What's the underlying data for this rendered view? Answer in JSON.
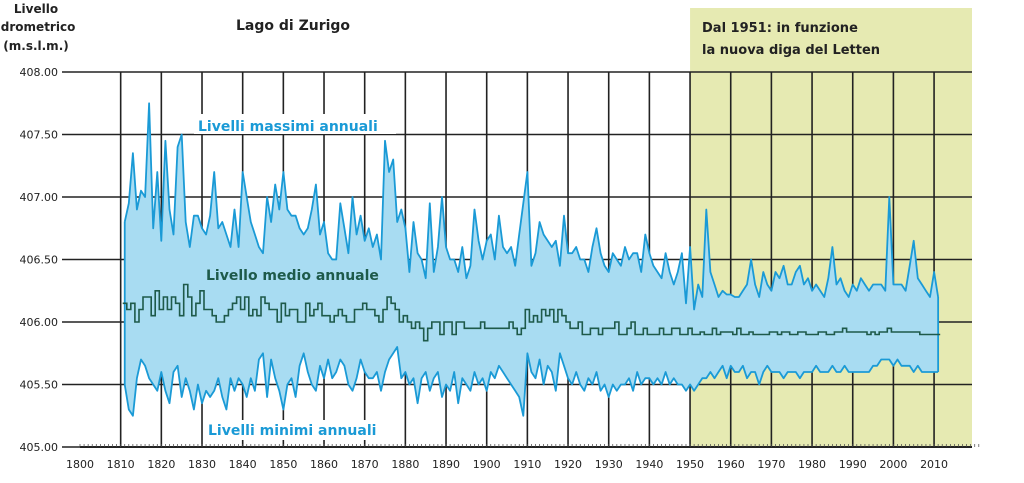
{
  "chart_data": {
    "type": "area",
    "title": "Lago di Zurigo",
    "ylabel": [
      "Livello",
      "idrometrico",
      "(m.s.l.m.)"
    ],
    "xlabel": "",
    "xlim": [
      1800,
      2018
    ],
    "ylim": [
      405.0,
      408.0
    ],
    "grid": true,
    "x_ticks": [
      "1800",
      "1810",
      "1820",
      "1830",
      "1840",
      "1850",
      "1860",
      "1870",
      "1880",
      "1890",
      "1900",
      "1910",
      "1920",
      "1930",
      "1940",
      "1950",
      "1960",
      "1970",
      "1980",
      "1990",
      "2000",
      "2010"
    ],
    "y_ticks": [
      "405.00",
      "405.50",
      "406.00",
      "406.50",
      "407.00",
      "407.50",
      "408.00"
    ],
    "annotation": {
      "lines": [
        "Dal 1951: in funzione",
        "la nuova diga del Letten"
      ],
      "shaded_from": 1950,
      "color": "#e6eab2"
    },
    "start_year": 1811,
    "series": [
      {
        "name": "Livelli massimi annuali",
        "color": "#1a9ad6",
        "values": [
          406.8,
          406.95,
          407.35,
          406.9,
          407.05,
          407.0,
          407.75,
          406.75,
          407.2,
          406.65,
          407.45,
          406.9,
          406.7,
          407.4,
          407.5,
          406.8,
          406.6,
          406.85,
          406.85,
          406.75,
          406.7,
          406.85,
          407.2,
          406.75,
          406.8,
          406.7,
          406.6,
          406.9,
          406.6,
          407.2,
          407.0,
          406.8,
          406.7,
          406.6,
          406.55,
          407.0,
          406.8,
          407.1,
          406.9,
          407.2,
          406.9,
          406.85,
          406.85,
          406.75,
          406.7,
          406.75,
          406.9,
          407.1,
          406.7,
          406.8,
          406.55,
          406.5,
          406.5,
          406.95,
          406.75,
          406.55,
          407.0,
          406.7,
          406.85,
          406.65,
          406.75,
          406.6,
          406.7,
          406.5,
          407.45,
          407.2,
          407.3,
          406.8,
          406.9,
          406.75,
          406.4,
          406.8,
          406.55,
          406.5,
          406.35,
          406.95,
          406.4,
          406.6,
          407.0,
          406.6,
          406.5,
          406.5,
          406.4,
          406.6,
          406.35,
          406.45,
          406.9,
          406.65,
          406.5,
          406.65,
          406.7,
          406.5,
          406.85,
          406.6,
          406.55,
          406.6,
          406.45,
          406.7,
          406.95,
          407.2,
          406.45,
          406.55,
          406.8,
          406.7,
          406.65,
          406.6,
          406.65,
          406.45,
          406.85,
          406.55,
          406.55,
          406.6,
          406.5,
          406.5,
          406.4,
          406.6,
          406.75,
          406.55,
          406.45,
          406.4,
          406.55,
          406.5,
          406.45,
          406.6,
          406.5,
          406.55,
          406.55,
          406.4,
          406.7,
          406.55,
          406.45,
          406.4,
          406.35,
          406.55,
          406.4,
          406.3,
          406.4,
          406.55,
          406.15,
          406.6,
          406.1,
          406.3,
          406.2,
          406.9,
          406.4,
          406.3,
          406.2,
          406.25,
          406.22,
          406.22,
          406.2,
          406.2,
          406.25,
          406.3,
          406.5,
          406.3,
          406.2,
          406.4,
          406.3,
          406.25,
          406.4,
          406.35,
          406.45,
          406.3,
          406.3,
          406.4,
          406.45,
          406.3,
          406.35,
          406.25,
          406.3,
          406.25,
          406.2,
          406.35,
          406.6,
          406.3,
          406.35,
          406.25,
          406.2,
          406.3,
          406.25,
          406.35,
          406.3,
          406.25,
          406.3,
          406.3,
          406.3,
          406.25,
          407.0,
          406.3,
          406.3,
          406.3,
          406.25,
          406.45,
          406.65,
          406.35,
          406.3,
          406.25,
          406.2,
          406.4,
          406.2
        ]
      },
      {
        "name": "Livello medio annuale",
        "color": "#1e5a4a",
        "values": [
          406.15,
          406.1,
          406.15,
          406.0,
          406.1,
          406.2,
          406.2,
          406.05,
          406.25,
          406.1,
          406.2,
          406.1,
          406.2,
          406.15,
          406.05,
          406.3,
          406.2,
          406.05,
          406.15,
          406.25,
          406.1,
          406.1,
          406.05,
          406.0,
          406.0,
          406.05,
          406.1,
          406.15,
          406.2,
          406.1,
          406.2,
          406.05,
          406.1,
          406.05,
          406.2,
          406.15,
          406.1,
          406.1,
          406.0,
          406.15,
          406.05,
          406.1,
          406.1,
          406.0,
          406.0,
          406.15,
          406.05,
          406.1,
          406.15,
          406.05,
          406.05,
          406.0,
          406.05,
          406.1,
          406.05,
          406.0,
          406.0,
          406.1,
          406.1,
          406.15,
          406.1,
          406.1,
          406.05,
          406.0,
          406.1,
          406.2,
          406.15,
          406.1,
          406.0,
          406.05,
          406.0,
          405.95,
          406.0,
          405.95,
          405.85,
          405.95,
          406.0,
          406.0,
          405.9,
          406.0,
          406.0,
          405.9,
          406.0,
          406.0,
          405.95,
          405.95,
          405.95,
          405.95,
          406.0,
          405.95,
          405.95,
          405.95,
          405.95,
          405.95,
          405.95,
          406.0,
          405.95,
          405.9,
          405.95,
          406.1,
          406.0,
          406.05,
          406.0,
          406.1,
          406.05,
          406.1,
          406.0,
          406.1,
          406.05,
          406.0,
          405.95,
          405.95,
          406.0,
          405.9,
          405.9,
          405.95,
          405.95,
          405.9,
          405.95,
          405.95,
          405.95,
          406.0,
          405.9,
          405.9,
          405.95,
          406.0,
          405.9,
          405.9,
          405.95,
          405.9,
          405.9,
          405.9,
          405.95,
          405.9,
          405.9,
          405.95,
          405.95,
          405.9,
          405.9,
          405.95,
          405.9,
          405.9,
          405.92,
          405.9,
          405.9,
          405.95,
          405.9,
          405.92,
          405.92,
          405.92,
          405.9,
          405.95,
          405.9,
          405.9,
          405.92,
          405.9,
          405.9,
          405.9,
          405.9,
          405.92,
          405.92,
          405.9,
          405.92,
          405.92,
          405.9,
          405.9,
          405.92,
          405.92,
          405.9,
          405.9,
          405.9,
          405.92,
          405.92,
          405.9,
          405.9,
          405.92,
          405.92,
          405.95,
          405.92,
          405.92,
          405.92,
          405.92,
          405.92,
          405.9,
          405.92,
          405.9,
          405.92,
          405.92,
          405.95,
          405.92,
          405.92,
          405.92,
          405.92,
          405.92,
          405.92,
          405.92,
          405.9,
          405.9,
          405.9,
          405.9,
          405.9
        ]
      },
      {
        "name": "Livelli minimi annuali",
        "color": "#1a9ad6",
        "values": [
          405.5,
          405.3,
          405.25,
          405.55,
          405.7,
          405.65,
          405.55,
          405.5,
          405.45,
          405.6,
          405.45,
          405.35,
          405.6,
          405.65,
          405.4,
          405.55,
          405.45,
          405.3,
          405.5,
          405.35,
          405.45,
          405.4,
          405.45,
          405.55,
          405.4,
          405.3,
          405.55,
          405.45,
          405.55,
          405.5,
          405.4,
          405.55,
          405.45,
          405.7,
          405.75,
          405.4,
          405.7,
          405.55,
          405.45,
          405.3,
          405.5,
          405.55,
          405.4,
          405.65,
          405.75,
          405.6,
          405.5,
          405.45,
          405.65,
          405.55,
          405.7,
          405.55,
          405.6,
          405.7,
          405.65,
          405.5,
          405.45,
          405.55,
          405.7,
          405.6,
          405.55,
          405.55,
          405.6,
          405.45,
          405.6,
          405.7,
          405.75,
          405.8,
          405.55,
          405.6,
          405.5,
          405.55,
          405.35,
          405.55,
          405.6,
          405.45,
          405.55,
          405.6,
          405.4,
          405.5,
          405.45,
          405.6,
          405.35,
          405.55,
          405.5,
          405.45,
          405.6,
          405.5,
          405.55,
          405.45,
          405.6,
          405.55,
          405.65,
          405.6,
          405.55,
          405.5,
          405.45,
          405.4,
          405.25,
          405.75,
          405.6,
          405.55,
          405.7,
          405.5,
          405.65,
          405.6,
          405.45,
          405.75,
          405.65,
          405.55,
          405.5,
          405.6,
          405.5,
          405.45,
          405.55,
          405.5,
          405.6,
          405.45,
          405.5,
          405.4,
          405.5,
          405.45,
          405.5,
          405.5,
          405.55,
          405.45,
          405.6,
          405.5,
          405.55,
          405.55,
          405.5,
          405.55,
          405.5,
          405.6,
          405.5,
          405.55,
          405.5,
          405.5,
          405.45,
          405.5,
          405.45,
          405.5,
          405.55,
          405.55,
          405.6,
          405.55,
          405.6,
          405.65,
          405.55,
          405.65,
          405.6,
          405.6,
          405.65,
          405.55,
          405.6,
          405.6,
          405.5,
          405.6,
          405.65,
          405.6,
          405.6,
          405.6,
          405.55,
          405.6,
          405.6,
          405.6,
          405.55,
          405.6,
          405.6,
          405.6,
          405.65,
          405.6,
          405.6,
          405.6,
          405.65,
          405.6,
          405.6,
          405.65,
          405.6,
          405.6,
          405.6,
          405.6,
          405.6,
          405.6,
          405.65,
          405.65,
          405.7,
          405.7,
          405.7,
          405.65,
          405.7,
          405.65,
          405.65,
          405.65,
          405.6,
          405.65,
          405.6,
          405.6,
          405.6,
          405.6,
          405.6
        ]
      }
    ],
    "range_fill_color": "#a8dcf2"
  }
}
